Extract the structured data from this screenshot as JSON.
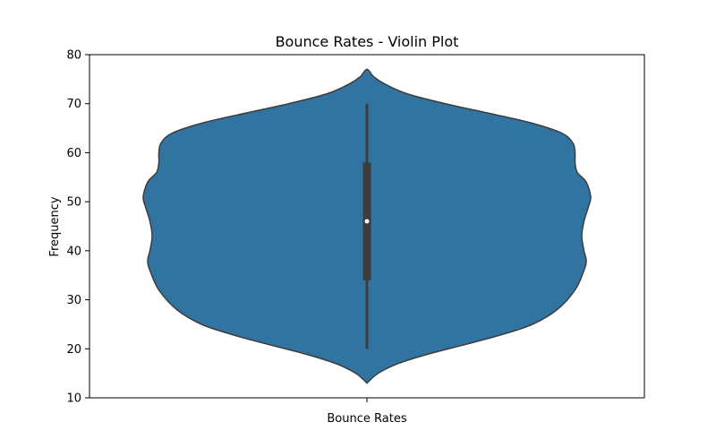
{
  "chart_data": {
    "type": "violin",
    "title": "Bounce Rates - Violin Plot",
    "xlabel": "",
    "ylabel": "Frequency",
    "ylim": [
      10,
      80
    ],
    "yticks": [
      10,
      20,
      30,
      40,
      50,
      60,
      70,
      80
    ],
    "categories": [
      "Bounce Rates"
    ],
    "grid": false,
    "colors": {
      "body": "#3274a1",
      "edge": "#3c3c3c",
      "box": "#3c3c3c",
      "median": "#ffffff"
    },
    "violin": {
      "range": [
        13,
        77
      ],
      "whisker_low": 20,
      "q1": 34,
      "median": 46,
      "q3": 58,
      "whisker_high": 70,
      "density_profile": [
        [
          13,
          0.0
        ],
        [
          15,
          0.05
        ],
        [
          17,
          0.14
        ],
        [
          19,
          0.28
        ],
        [
          21,
          0.45
        ],
        [
          23,
          0.61
        ],
        [
          25,
          0.74
        ],
        [
          28,
          0.85
        ],
        [
          32,
          0.93
        ],
        [
          36,
          0.97
        ],
        [
          38,
          0.98
        ],
        [
          40,
          0.97
        ],
        [
          43,
          0.96
        ],
        [
          46,
          0.97
        ],
        [
          49,
          0.99
        ],
        [
          51,
          1.0
        ],
        [
          54,
          0.98
        ],
        [
          56,
          0.94
        ],
        [
          58,
          0.93
        ],
        [
          60,
          0.93
        ],
        [
          62,
          0.92
        ],
        [
          64,
          0.87
        ],
        [
          66,
          0.74
        ],
        [
          68,
          0.55
        ],
        [
          70,
          0.35
        ],
        [
          72,
          0.18
        ],
        [
          74,
          0.08
        ],
        [
          75.5,
          0.03
        ],
        [
          77,
          0.0
        ]
      ]
    }
  }
}
